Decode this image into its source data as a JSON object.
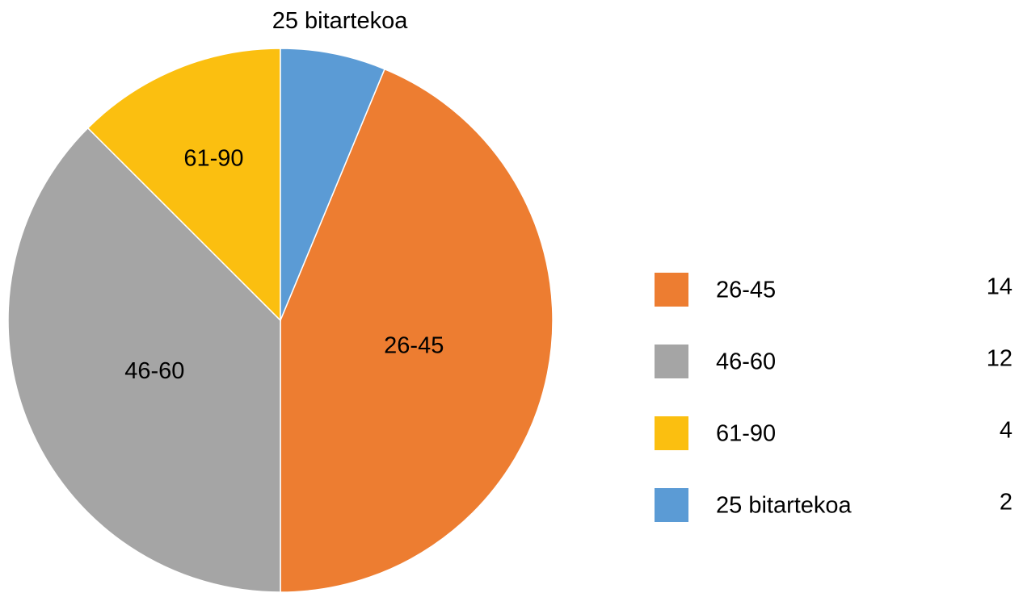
{
  "chart_data": {
    "type": "pie",
    "categories": [
      "26-45",
      "46-60",
      "61-90",
      "25 bitartekoa"
    ],
    "values": [
      14,
      12,
      4,
      2
    ],
    "colors": [
      "#ed7d31",
      "#a5a5a5",
      "#fbbf10",
      "#5b9bd5"
    ],
    "legend": "right"
  }
}
